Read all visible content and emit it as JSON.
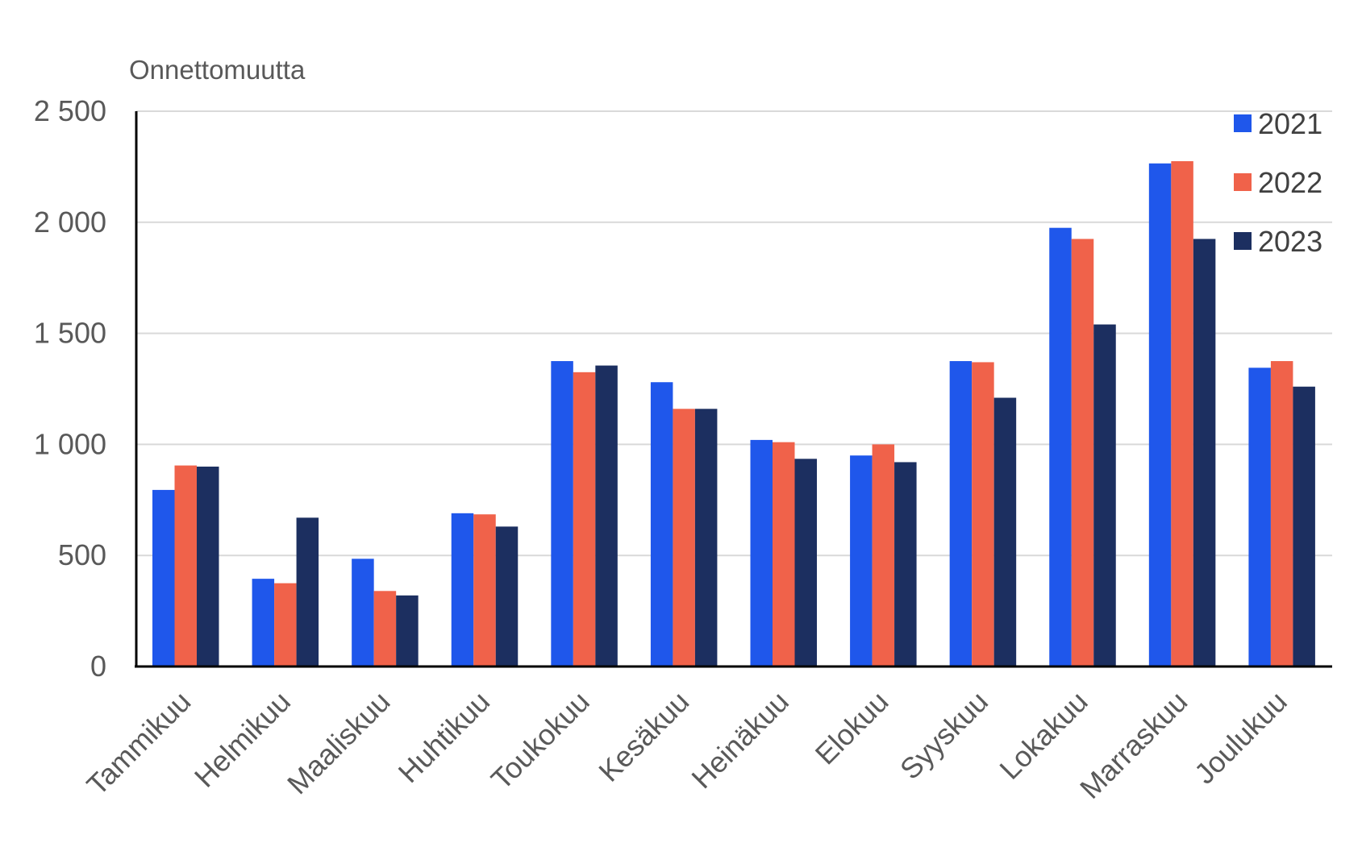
{
  "chart_data": {
    "type": "bar",
    "title": "",
    "xlabel": "",
    "ylabel": "Onnettomuutta",
    "ylim": [
      0,
      2500
    ],
    "yticks": [
      0,
      500,
      1000,
      1500,
      2000,
      2500
    ],
    "ytick_labels": [
      "0",
      "500",
      "1 000",
      "1 500",
      "2 000",
      "2 500"
    ],
    "grid": true,
    "legend_position": "top-right",
    "categories": [
      "Tammikuu",
      "Helmikuu",
      "Maaliskuu",
      "Huhtikuu",
      "Toukokuu",
      "Kesäkuu",
      "Heinäkuu",
      "Elokuu",
      "Syyskuu",
      "Lokakuu",
      "Marraskuu",
      "Joulukuu"
    ],
    "series": [
      {
        "name": "2021",
        "color": "#1f57eb",
        "values": [
          795,
          395,
          485,
          690,
          1375,
          1280,
          1020,
          950,
          1375,
          1975,
          2265,
          1345
        ]
      },
      {
        "name": "2022",
        "color": "#f0624a",
        "values": [
          905,
          375,
          340,
          685,
          1325,
          1160,
          1010,
          1000,
          1370,
          1925,
          2275,
          1375
        ]
      },
      {
        "name": "2023",
        "color": "#1c2f60",
        "values": [
          900,
          670,
          320,
          630,
          1355,
          1160,
          935,
          920,
          1210,
          1540,
          1925,
          1260
        ]
      }
    ]
  }
}
